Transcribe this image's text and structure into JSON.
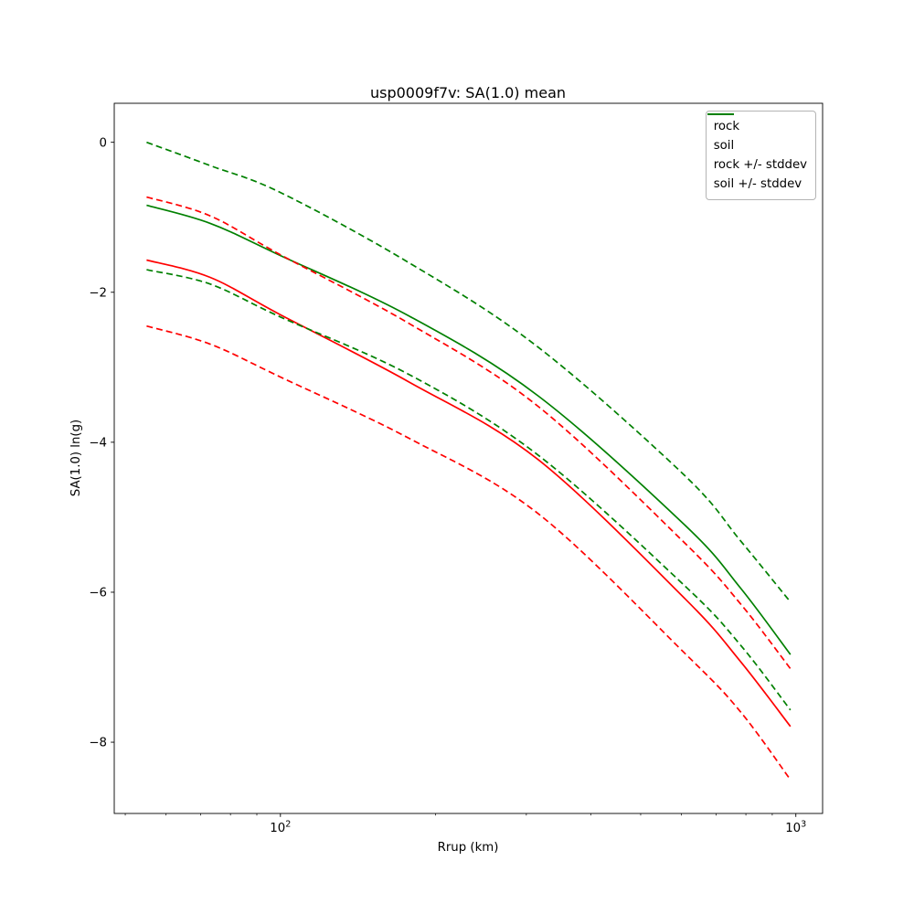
{
  "title": "usp0009f7v: SA(1.0) mean",
  "xlabel": "Rrup (km)",
  "ylabel": "SA(1.0) ln(g)",
  "colors": {
    "rock": "#ff0000",
    "soil": "#008000",
    "frame": "#000000"
  },
  "legend": {
    "position": "top-right",
    "items": [
      {
        "label": "rock",
        "color": "#ff0000",
        "style": "solid"
      },
      {
        "label": "soil",
        "color": "#008000",
        "style": "solid"
      },
      {
        "label": "rock +/- stddev",
        "color": "#ff0000",
        "style": "dashed"
      },
      {
        "label": "soil +/- stddev",
        "color": "#008000",
        "style": "dashed"
      }
    ]
  },
  "chart_data": {
    "type": "line",
    "title": "usp0009f7v: SA(1.0) mean",
    "xlabel": "Rrup (km)",
    "ylabel": "SA(1.0) ln(g)",
    "xscale": "log",
    "grid": false,
    "legend_position": "upper right",
    "xlim": [
      47.6,
      1127
    ],
    "ylim": [
      -8.95,
      0.52
    ],
    "x_km": [
      55,
      73,
      100,
      178,
      316,
      610,
      780,
      976
    ],
    "series": [
      {
        "name": "rock",
        "color": "#ff0000",
        "style": "solid",
        "values": [
          -1.57,
          -1.8,
          -2.3,
          -3.2,
          -4.23,
          -6.09,
          -6.92,
          -7.79
        ]
      },
      {
        "name": "soil",
        "color": "#008000",
        "style": "solid",
        "values": [
          -0.84,
          -1.08,
          -1.51,
          -2.32,
          -3.38,
          -5.11,
          -5.94,
          -6.83
        ]
      },
      {
        "name": "rock plus stddev",
        "color": "#ff0000",
        "style": "dashed",
        "values": [
          -0.73,
          -0.98,
          -1.5,
          -2.42,
          -3.52,
          -5.35,
          -6.15,
          -7.02
        ]
      },
      {
        "name": "rock minus stddev",
        "color": "#ff0000",
        "style": "dashed",
        "values": [
          -2.45,
          -2.69,
          -3.13,
          -3.95,
          -4.95,
          -6.82,
          -7.59,
          -8.5
        ]
      },
      {
        "name": "soil plus stddev",
        "color": "#008000",
        "style": "dashed",
        "values": [
          0.0,
          -0.31,
          -0.67,
          -1.61,
          -2.73,
          -4.45,
          -5.31,
          -6.13
        ]
      },
      {
        "name": "soil minus stddev",
        "color": "#008000",
        "style": "dashed",
        "values": [
          -1.7,
          -1.89,
          -2.33,
          -3.1,
          -4.17,
          -5.92,
          -6.7,
          -7.57
        ]
      }
    ],
    "x_ticks_major": [
      {
        "value": 100,
        "base": "10",
        "exp": "2"
      },
      {
        "value": 1000,
        "base": "10",
        "exp": "3"
      }
    ],
    "x_ticks_minor": [
      50,
      60,
      70,
      80,
      90,
      200,
      300,
      400,
      500,
      600,
      700,
      800,
      900
    ],
    "y_ticks": [
      {
        "value": 0,
        "label": "0"
      },
      {
        "value": -2,
        "label": "−2"
      },
      {
        "value": -4,
        "label": "−4"
      },
      {
        "value": -6,
        "label": "−6"
      },
      {
        "value": -8,
        "label": "−8"
      }
    ]
  }
}
